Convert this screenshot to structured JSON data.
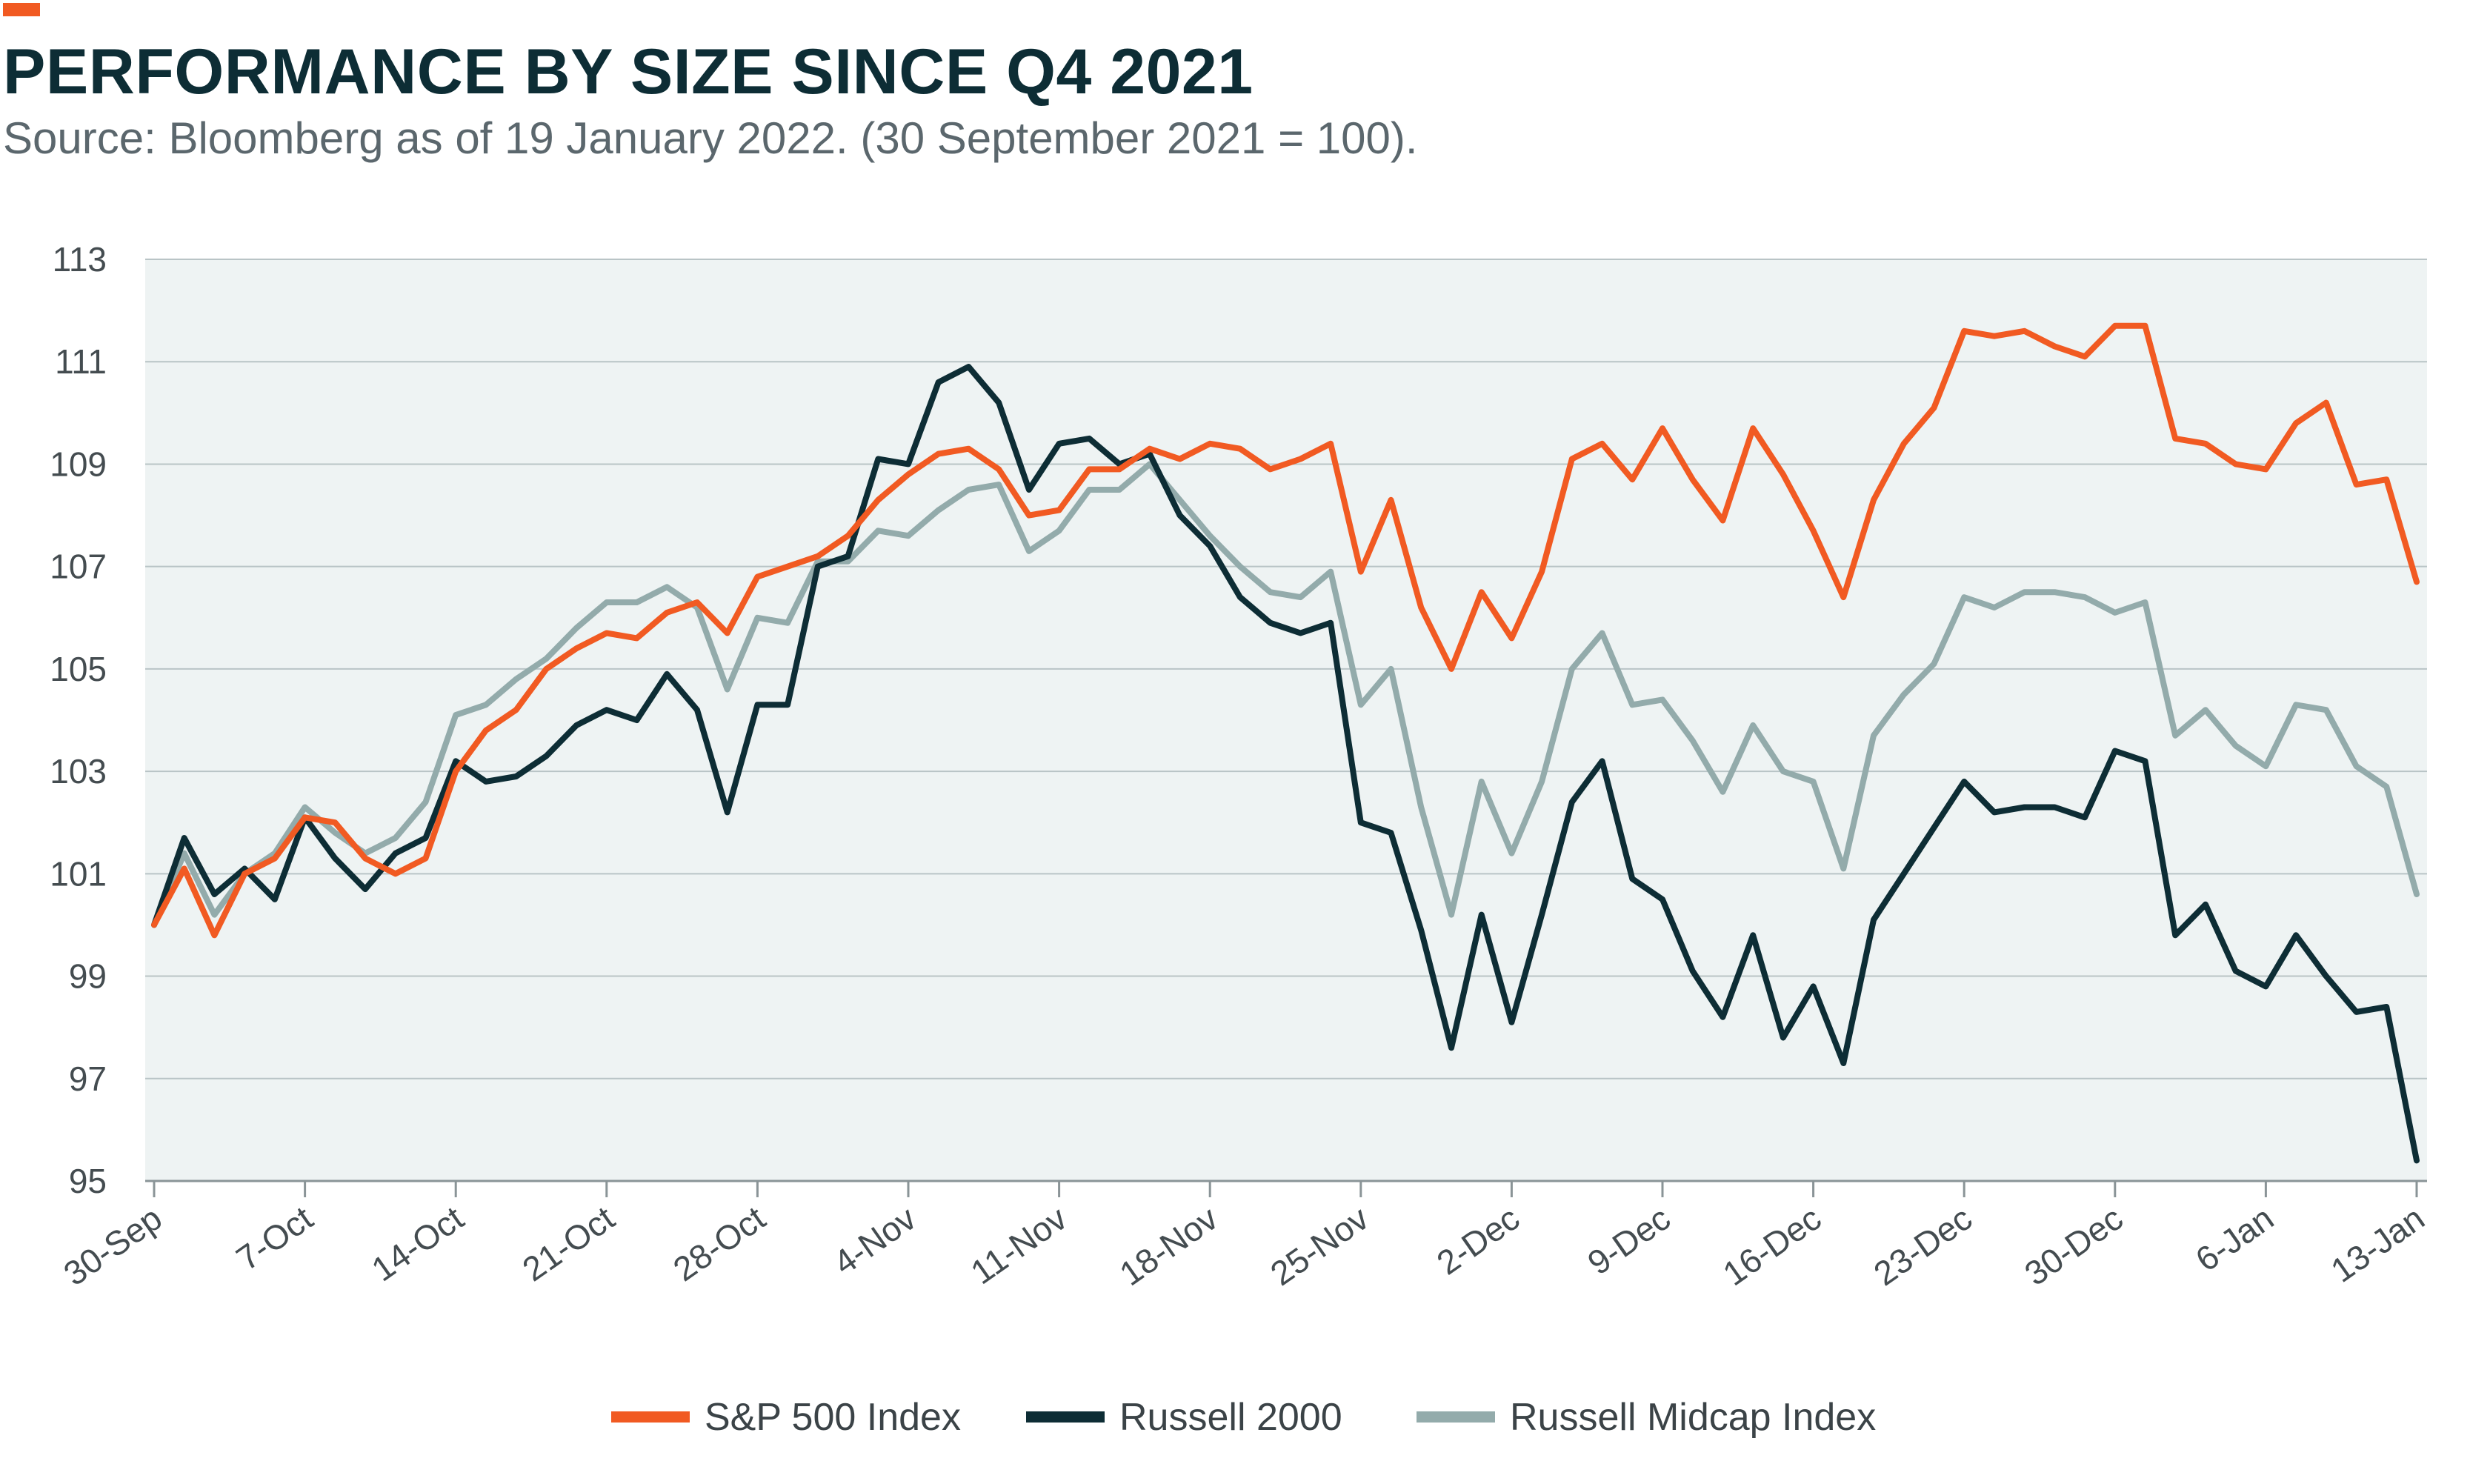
{
  "header": {
    "title": "PERFORMANCE BY SIZE SINCE Q4 2021",
    "subtitle": "Source: Bloomberg as of 19 January 2022. (30 September 2021 = 100)."
  },
  "colors": {
    "accent": "#f15a22",
    "sp500": "#f15a22",
    "russell2000": "#0d2d35",
    "midcap": "#93abab",
    "plot_bg": "#eef3f3",
    "grid": "#b9c4c6"
  },
  "chart_data": {
    "type": "line",
    "title": "PERFORMANCE BY SIZE SINCE Q4 2021",
    "subtitle": "Source: Bloomberg as of 19 January 2022. (30 September 2021 = 100).",
    "xlabel": "",
    "ylabel": "",
    "ylim": [
      95,
      113
    ],
    "yticks": [
      95,
      97,
      99,
      101,
      103,
      105,
      107,
      109,
      111,
      113
    ],
    "x_tick_labels": [
      "30-Sep",
      "7-Oct",
      "14-Oct",
      "21-Oct",
      "28-Oct",
      "4-Nov",
      "11-Nov",
      "18-Nov",
      "25-Nov",
      "2-Dec",
      "9-Dec",
      "16-Dec",
      "23-Dec",
      "30-Dec",
      "6-Jan",
      "13-Jan"
    ],
    "grid": "horizontal",
    "legend_position": "bottom",
    "points_per_week": 5,
    "series": [
      {
        "name": "S&P 500 Index",
        "color": "#f15a22",
        "values": [
          100,
          101.1,
          99.8,
          101,
          101.3,
          102.1,
          102,
          101.3,
          101,
          101.3,
          103,
          103.8,
          104.2,
          105,
          105.4,
          105.7,
          105.6,
          106.1,
          106.3,
          105.7,
          106.8,
          107,
          107.2,
          107.6,
          108.3,
          108.8,
          109.2,
          109.3,
          108.9,
          108,
          108.1,
          108.9,
          108.9,
          109.3,
          109.1,
          109.4,
          109.3,
          108.9,
          109.1,
          109.4,
          106.9,
          108.3,
          106.2,
          105,
          106.5,
          105.6,
          106.9,
          109.1,
          109.4,
          108.7,
          109.7,
          108.7,
          107.9,
          109.7,
          108.8,
          107.7,
          106.4,
          108.3,
          109.4,
          110.1,
          111.6,
          111.5,
          111.6,
          111.3,
          111.1,
          111.7,
          111.7,
          109.5,
          109.4,
          109,
          108.9,
          109.8,
          110.2,
          108.6,
          108.7,
          106.7
        ]
      },
      {
        "name": "Russell 2000",
        "color": "#0d2d35",
        "values": [
          100,
          101.7,
          100.6,
          101.1,
          100.5,
          102.1,
          101.3,
          100.7,
          101.4,
          101.7,
          103.2,
          102.8,
          102.9,
          103.3,
          103.9,
          104.2,
          104,
          104.9,
          104.2,
          102.2,
          104.3,
          104.3,
          107,
          107.2,
          109.1,
          109,
          110.6,
          110.9,
          110.2,
          108.5,
          109.4,
          109.5,
          109,
          109.2,
          108,
          107.4,
          106.4,
          105.9,
          105.7,
          105.9,
          102,
          101.8,
          99.9,
          97.6,
          100.2,
          98.1,
          100.2,
          102.4,
          103.2,
          100.9,
          100.5,
          99.1,
          98.2,
          99.8,
          97.8,
          98.8,
          97.3,
          100.1,
          101,
          101.9,
          102.8,
          102.2,
          102.3,
          102.3,
          102.1,
          103.4,
          103.2,
          99.8,
          100.4,
          99.1,
          98.8,
          99.8,
          99,
          98.3,
          98.4,
          95.4
        ]
      },
      {
        "name": "Russell Midcap Index",
        "color": "#93abab",
        "values": [
          100,
          101.4,
          100.2,
          101,
          101.4,
          102.3,
          101.8,
          101.4,
          101.7,
          102.4,
          104.1,
          104.3,
          104.8,
          105.2,
          105.8,
          106.3,
          106.3,
          106.6,
          106.2,
          104.6,
          106,
          105.9,
          107.1,
          107.1,
          107.7,
          107.6,
          108.1,
          108.5,
          108.6,
          107.3,
          107.7,
          108.5,
          108.5,
          109,
          108.3,
          107.6,
          107,
          106.5,
          106.4,
          106.9,
          104.3,
          105,
          102.3,
          100.2,
          102.8,
          101.4,
          102.8,
          105,
          105.7,
          104.3,
          104.4,
          103.6,
          102.6,
          103.9,
          103,
          102.8,
          101.1,
          103.7,
          104.5,
          105.1,
          106.4,
          106.2,
          106.5,
          106.5,
          106.4,
          106.1,
          106.3,
          103.7,
          104.2,
          103.5,
          103.1,
          104.3,
          104.2,
          103.1,
          102.7,
          100.6
        ]
      }
    ]
  }
}
